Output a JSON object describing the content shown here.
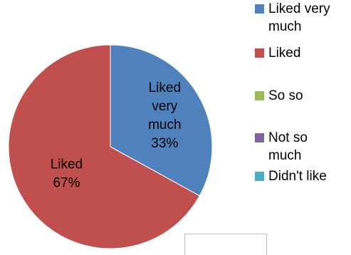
{
  "chart_data": {
    "type": "pie",
    "slices": [
      {
        "label": "Liked very much",
        "value": 33,
        "percent_label": "33%",
        "color": "#4f81bd",
        "data_label_lines": [
          "Liked",
          "very",
          "much",
          "33%"
        ]
      },
      {
        "label": "Liked",
        "value": 67,
        "percent_label": "67%",
        "color": "#c0504d",
        "data_label_lines": [
          "Liked",
          "67%"
        ]
      },
      {
        "label": "So so",
        "value": 0,
        "color": "#9bbb59"
      },
      {
        "label": "Not so much",
        "value": 0,
        "color": "#8064a2"
      },
      {
        "label": "Didn't like",
        "value": 0,
        "color": "#4bacc6"
      }
    ],
    "legend_position": "right",
    "legend": [
      {
        "lines": [
          "Liked very",
          "much"
        ],
        "color": "#4f81bd"
      },
      {
        "lines": [
          "Liked"
        ],
        "color": "#c0504d"
      },
      {
        "lines": [
          "So so"
        ],
        "color": "#9bbb59"
      },
      {
        "lines": [
          "Not so",
          "much"
        ],
        "color": "#8064a2"
      },
      {
        "lines": [
          "Didn't like"
        ],
        "color": "#4bacc6"
      }
    ]
  }
}
